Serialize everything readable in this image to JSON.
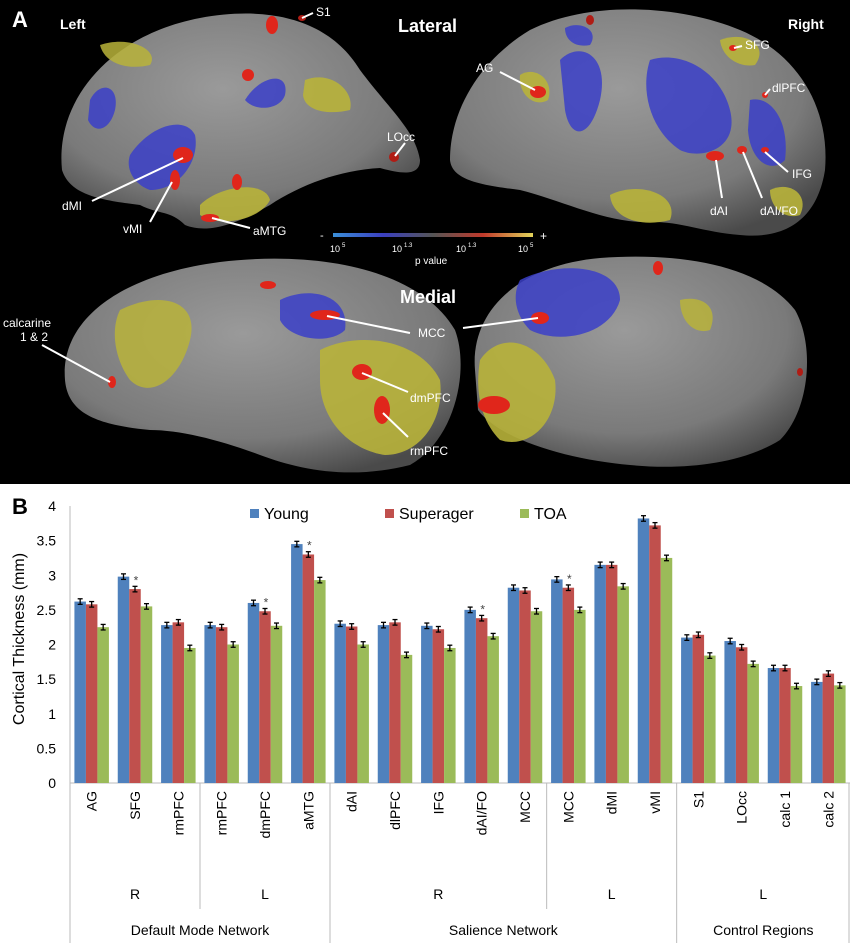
{
  "panel_a": {
    "letter": "A",
    "view_labels": {
      "left": "Left",
      "right": "Right",
      "lateral": "Lateral",
      "medial": "Medial"
    },
    "region_labels": {
      "s1": "S1",
      "ag": "AG",
      "sfg": "SFG",
      "dlpfc": "dlPFC",
      "locc": "LOcc",
      "ifg": "IFG",
      "dmi": "dMI",
      "vmi": "vMI",
      "amtg": "aMTG",
      "dai": "dAI",
      "daifo": "dAI/FO",
      "calcarine1": "calcarine",
      "calcarine2": "1 & 2",
      "mcc": "MCC",
      "dmpfc": "dmPFC",
      "rmpfc": "rmPFC"
    },
    "colorbar": {
      "minus": "-",
      "plus": "+",
      "ticks": [
        "10",
        "10",
        "10",
        "10"
      ],
      "exponents": [
        "5",
        "1.3",
        "1.3",
        "5"
      ],
      "label": "p value",
      "colors": [
        "#3a8fd8",
        "#3b3fc0",
        "#555555",
        "#c0392b",
        "#e2d45a"
      ]
    },
    "colors": {
      "cortex_light": "#8a8a8a",
      "cortex_dark": "#5c5c5c",
      "blue": "#3b3fc8",
      "yellow": "#b8b33a",
      "red": "#e0261b"
    }
  },
  "chart_data": {
    "letter": "B",
    "type": "bar",
    "ylabel": "Cortical Thickness (mm)",
    "ylim": [
      0,
      4
    ],
    "yticks": [
      "0",
      "0.5",
      "1",
      "1.5",
      "2",
      "2.5",
      "3",
      "3.5",
      "4"
    ],
    "grid": false,
    "legend_position": "top",
    "categories": [
      "AG",
      "SFG",
      "rmPFC",
      "rmPFC",
      "dmPFC",
      "aMTG",
      "dAI",
      "dlPFC",
      "IFG",
      "dAI/FO",
      "MCC",
      "MCC",
      "dMI",
      "vMI",
      "S1",
      "LOcc",
      "calc 1",
      "calc 2"
    ],
    "series": [
      {
        "name": "Young",
        "color": "#4f81bd",
        "values": [
          2.62,
          2.98,
          2.28,
          2.28,
          2.6,
          3.45,
          2.3,
          2.28,
          2.27,
          2.5,
          2.82,
          2.94,
          3.15,
          3.82,
          2.1,
          2.05,
          1.66,
          1.46
        ]
      },
      {
        "name": "Superager",
        "color": "#c0504d",
        "values": [
          2.58,
          2.8,
          2.32,
          2.25,
          2.48,
          3.3,
          2.26,
          2.32,
          2.22,
          2.38,
          2.78,
          2.82,
          3.15,
          3.72,
          2.14,
          1.96,
          1.66,
          1.58
        ]
      },
      {
        "name": "TOA",
        "color": "#9bbb59",
        "values": [
          2.25,
          2.55,
          1.95,
          2.0,
          2.27,
          2.93,
          2.0,
          1.85,
          1.95,
          2.12,
          2.48,
          2.5,
          2.84,
          3.25,
          1.84,
          1.72,
          1.4,
          1.41
        ]
      }
    ],
    "error_bar": 0.04,
    "significance_marker": "*",
    "significant_categories": [
      1,
      4,
      5,
      9,
      11
    ],
    "hemispheres": [
      "R",
      "L",
      "R",
      "L",
      "L"
    ],
    "networks": [
      "Default Mode Network",
      "Salience Network",
      "Control Regions"
    ]
  }
}
